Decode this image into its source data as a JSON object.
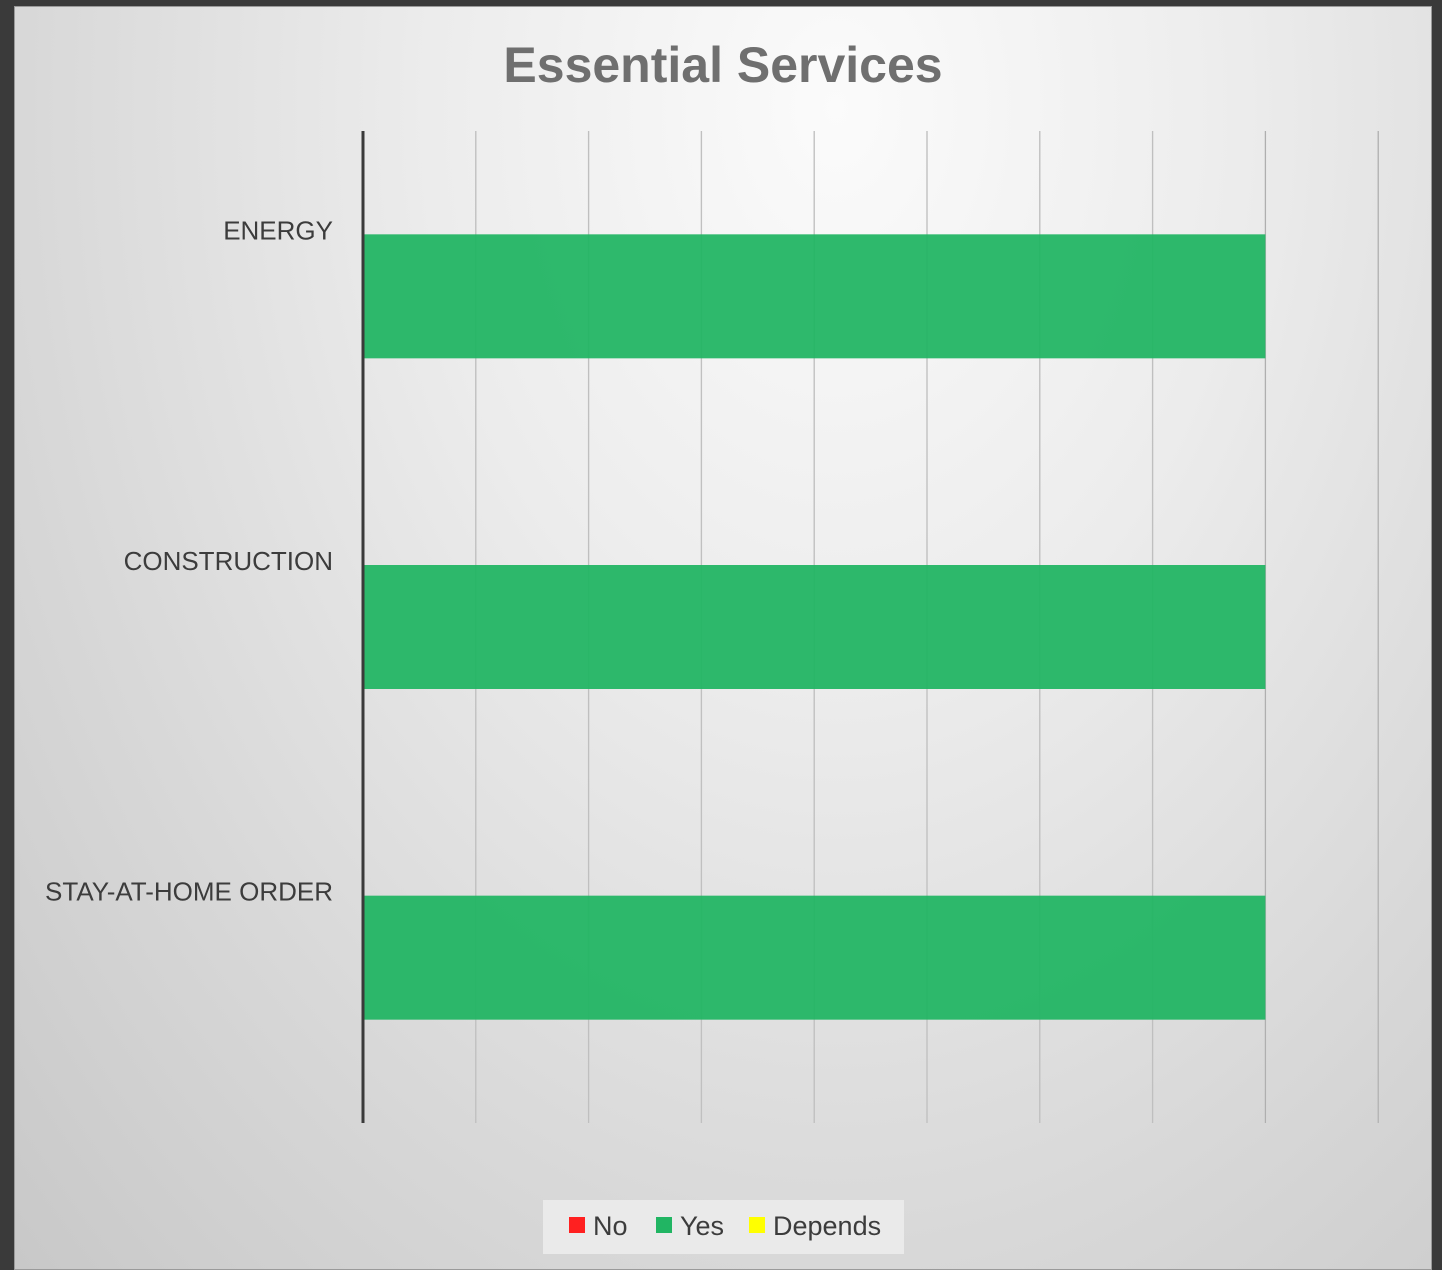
{
  "chart_data": {
    "type": "bar",
    "orientation": "horizontal",
    "stacked": true,
    "title": "Essential Services",
    "categories": [
      "STAY-AT-HOME ORDER",
      "CONSTRUCTION",
      "ENERGY"
    ],
    "series": [
      {
        "name": "No",
        "color": "#ff2020",
        "values": [
          0,
          0,
          0
        ]
      },
      {
        "name": "Yes",
        "color": "#21b563",
        "values": [
          8,
          8,
          8
        ]
      },
      {
        "name": "Depends",
        "color": "#ffff00",
        "values": [
          0,
          0,
          0
        ]
      }
    ],
    "xlim": [
      0,
      9
    ],
    "x_tick_step": 1,
    "x_tick_labels_visible": false,
    "grid": "vertical",
    "legend": "bottom"
  }
}
